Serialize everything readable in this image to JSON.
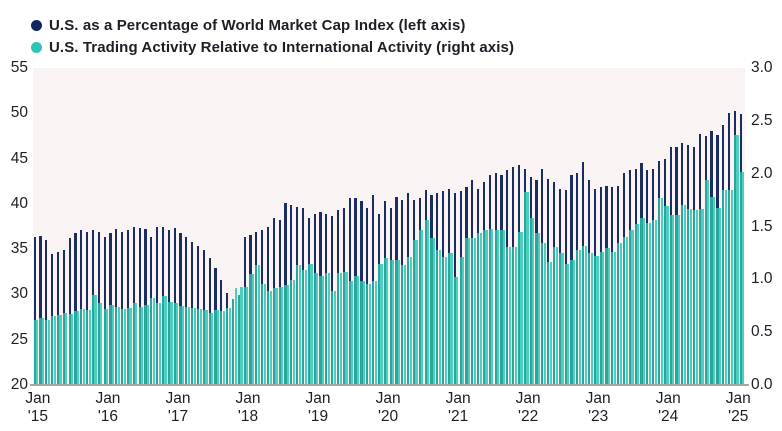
{
  "legend": {
    "items": [
      {
        "label": "U.S. as a Percentage of World Market Cap Index (left axis)",
        "color": "#12275e"
      },
      {
        "label": "U.S. Trading Activity Relative to International Activity (right axis)",
        "color": "#2ec4b4"
      }
    ]
  },
  "chart_data": {
    "type": "bar",
    "title": "",
    "grid": false,
    "legend_position": "top-left",
    "plot_background": "#faf3f3",
    "baseline_color": "#a9a5a3",
    "months_start": "2015-01",
    "months_count": 122,
    "x_tick_labels": [
      "Jan '15",
      "Jan '16",
      "Jan '17",
      "Jan '18",
      "Jan '19",
      "Jan '20",
      "Jan '21",
      "Jan '22",
      "Jan '23",
      "Jan '24",
      "Jan '25"
    ],
    "left_axis": {
      "label": "U.S. as a Percentage of World Market Cap Index",
      "min": 20,
      "max": 55,
      "ticks": [
        55,
        50,
        45,
        40,
        35,
        30,
        25,
        20
      ]
    },
    "right_axis": {
      "label": "U.S. Trading Activity Relative to International Activity",
      "min": 0.0,
      "max": 3.0,
      "ticks": [
        "3.0",
        "2.5",
        "2.0",
        "1.5",
        "1.0",
        "0.5",
        "0.0"
      ]
    },
    "series": [
      {
        "name": "U.S. as a Percentage of World Market Cap Index",
        "axis": "left",
        "color": "#1b2c5e",
        "values": [
          36.4,
          36.5,
          36.0,
          34.5,
          34.7,
          34.9,
          36.2,
          36.8,
          37.1,
          36.9,
          37.1,
          36.9,
          36.3,
          36.8,
          37.2,
          36.9,
          37.1,
          37.4,
          37.3,
          37.2,
          36.3,
          37.4,
          37.5,
          37.1,
          37.3,
          36.8,
          36.3,
          35.8,
          35.3,
          34.9,
          34.0,
          32.9,
          31.6,
          30.2,
          29.5,
          29.9,
          36.3,
          36.6,
          36.9,
          37.1,
          37.4,
          38.4,
          38.2,
          40.1,
          39.9,
          39.7,
          39.5,
          38.4,
          38.9,
          39.1,
          38.9,
          38.7,
          39.3,
          39.5,
          40.6,
          40.6,
          40.3,
          39.5,
          41.0,
          38.9,
          40.3,
          39.5,
          40.8,
          40.4,
          41.2,
          40.4,
          40.6,
          41.5,
          41.0,
          41.2,
          41.4,
          41.7,
          41.2,
          41.4,
          41.9,
          42.6,
          41.7,
          42.4,
          43.2,
          43.4,
          43.2,
          43.7,
          44.1,
          44.3,
          43.9,
          43.0,
          42.6,
          43.9,
          42.8,
          42.4,
          41.7,
          41.5,
          43.2,
          43.4,
          44.6,
          42.6,
          41.7,
          41.9,
          42.0,
          41.9,
          42.0,
          43.4,
          43.7,
          43.9,
          44.5,
          43.7,
          43.9,
          44.7,
          45.0,
          46.3,
          46.3,
          46.7,
          46.5,
          46.3,
          47.7,
          47.5,
          48.1,
          47.6,
          48.7,
          50.0,
          50.3,
          49.9
        ]
      },
      {
        "name": "U.S. Trading Activity Relative to International Activity",
        "axis": "right",
        "color": "#4ccfc0",
        "color_over_navy": "#2aa79a",
        "values": [
          0.62,
          0.63,
          0.62,
          0.65,
          0.66,
          0.68,
          0.67,
          0.7,
          0.72,
          0.71,
          0.85,
          0.78,
          0.72,
          0.76,
          0.74,
          0.72,
          0.73,
          0.78,
          0.74,
          0.76,
          0.82,
          0.78,
          0.84,
          0.79,
          0.78,
          0.75,
          0.74,
          0.73,
          0.72,
          0.71,
          0.68,
          0.71,
          0.7,
          0.73,
          0.92,
          0.93,
          0.93,
          1.05,
          1.14,
          0.96,
          0.89,
          0.92,
          0.93,
          0.95,
          0.99,
          1.14,
          1.09,
          1.15,
          1.06,
          1.03,
          1.06,
          0.89,
          1.06,
          1.07,
          0.98,
          1.03,
          0.98,
          0.96,
          0.98,
          1.15,
          1.2,
          1.18,
          1.18,
          1.14,
          1.21,
          1.37,
          1.47,
          1.56,
          1.39,
          1.28,
          1.21,
          1.25,
          1.02,
          1.21,
          1.39,
          1.39,
          1.44,
          1.47,
          1.48,
          1.47,
          1.47,
          1.31,
          1.31,
          1.45,
          1.83,
          1.58,
          1.44,
          1.34,
          1.16,
          1.31,
          1.25,
          1.15,
          1.18,
          1.28,
          1.32,
          1.25,
          1.22,
          1.26,
          1.3,
          1.26,
          1.34,
          1.4,
          1.47,
          1.52,
          1.58,
          1.53,
          1.56,
          1.77,
          1.69,
          1.61,
          1.61,
          1.7,
          1.67,
          1.66,
          1.67,
          1.94,
          1.78,
          1.68,
          1.85,
          1.85,
          2.37,
          2.02
        ]
      }
    ]
  }
}
